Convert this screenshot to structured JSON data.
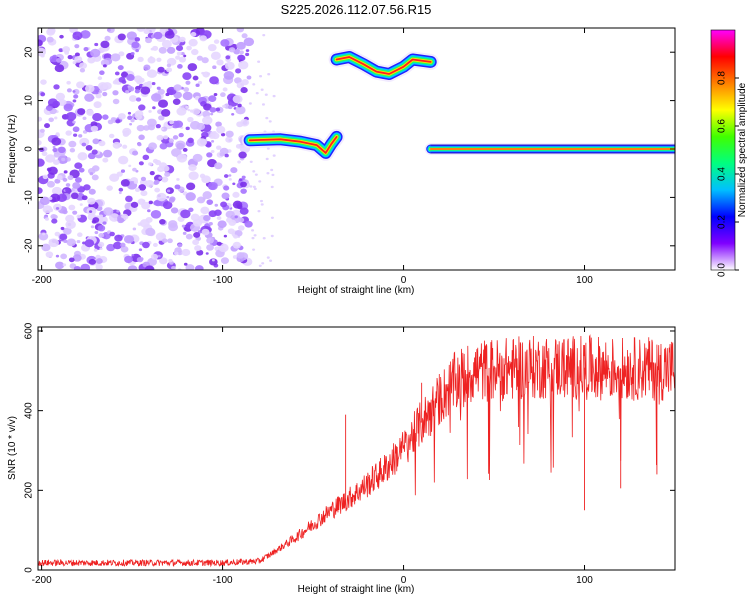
{
  "title": "S225.2026.112.07.56.R15",
  "chart_data": [
    {
      "type": "heatmap",
      "title": "S225.2026.112.07.56.R15",
      "xlabel": "Height of straight line (km)",
      "ylabel": "Frequency (Hz)",
      "xlim": [
        -202,
        150
      ],
      "ylim": [
        -25,
        25
      ],
      "xticks": [
        -200,
        -100,
        0,
        100
      ],
      "xtick_labels": [
        "-200",
        "-100",
        "0",
        "100"
      ],
      "yticks": [
        20,
        10,
        0,
        -10,
        -20
      ],
      "ytick_labels": [
        "20",
        "10",
        "0",
        "-10",
        "-20"
      ],
      "noise_region_x": [
        -202,
        -85
      ],
      "bands": [
        {
          "name": "low-band",
          "x": [
            -85,
            -68,
            -57,
            -48,
            -43,
            -40,
            -37
          ],
          "y": [
            1.8,
            2.0,
            1.5,
            0.8,
            -0.8,
            1.0,
            2.5
          ]
        },
        {
          "name": "upper-band",
          "x": [
            -37,
            -30,
            -22,
            -15,
            -8,
            0,
            5,
            15
          ],
          "y": [
            18.5,
            19.0,
            17.5,
            16.0,
            15.5,
            17.0,
            18.5,
            18.0
          ]
        },
        {
          "name": "flat-band",
          "x": [
            15,
            150
          ],
          "y": [
            0.0,
            0.0
          ]
        }
      ],
      "colorbar": {
        "label": "Normalized spectral amplitude",
        "range": [
          0,
          1
        ],
        "ticks": [
          "0.0",
          "0.2",
          "0.4",
          "0.6",
          "0.8"
        ],
        "colors": [
          "#ffffff",
          "#7f00ff",
          "#0000ff",
          "#00bfff",
          "#00ff80",
          "#40ff00",
          "#ffff00",
          "#ff8000",
          "#ff0000",
          "#ff00ff"
        ]
      }
    },
    {
      "type": "line",
      "xlabel": "Height of straight line (km)",
      "ylabel": "SNR (10 * v/v)",
      "xlim": [
        -202,
        150
      ],
      "ylim": [
        0,
        610
      ],
      "xticks": [
        -200,
        -100,
        0,
        100
      ],
      "xtick_labels": [
        "-200",
        "-100",
        "0",
        "100"
      ],
      "yticks": [
        0,
        200,
        400,
        600
      ],
      "ytick_labels": [
        "0",
        "200",
        "400",
        "600"
      ],
      "series": [
        {
          "name": "SNR",
          "color": "#ee2222",
          "x": [
            -202,
            -150,
            -100,
            -80,
            -75,
            -70,
            -60,
            -50,
            -40,
            -30,
            -20,
            -10,
            0,
            10,
            20,
            30,
            40,
            60,
            80,
            100,
            120,
            140,
            150
          ],
          "y": [
            18,
            18,
            18,
            22,
            35,
            50,
            80,
            115,
            150,
            180,
            215,
            255,
            305,
            370,
            430,
            480,
            500,
            505,
            510,
            508,
            505,
            505,
            505
          ]
        }
      ],
      "spikes": [
        {
          "x": -32,
          "y": 390
        },
        {
          "x": 10,
          "y": 470
        },
        {
          "x": 100,
          "y": 150
        },
        {
          "x": 120,
          "y": 205
        },
        {
          "x": 140,
          "y": 240
        }
      ]
    }
  ]
}
